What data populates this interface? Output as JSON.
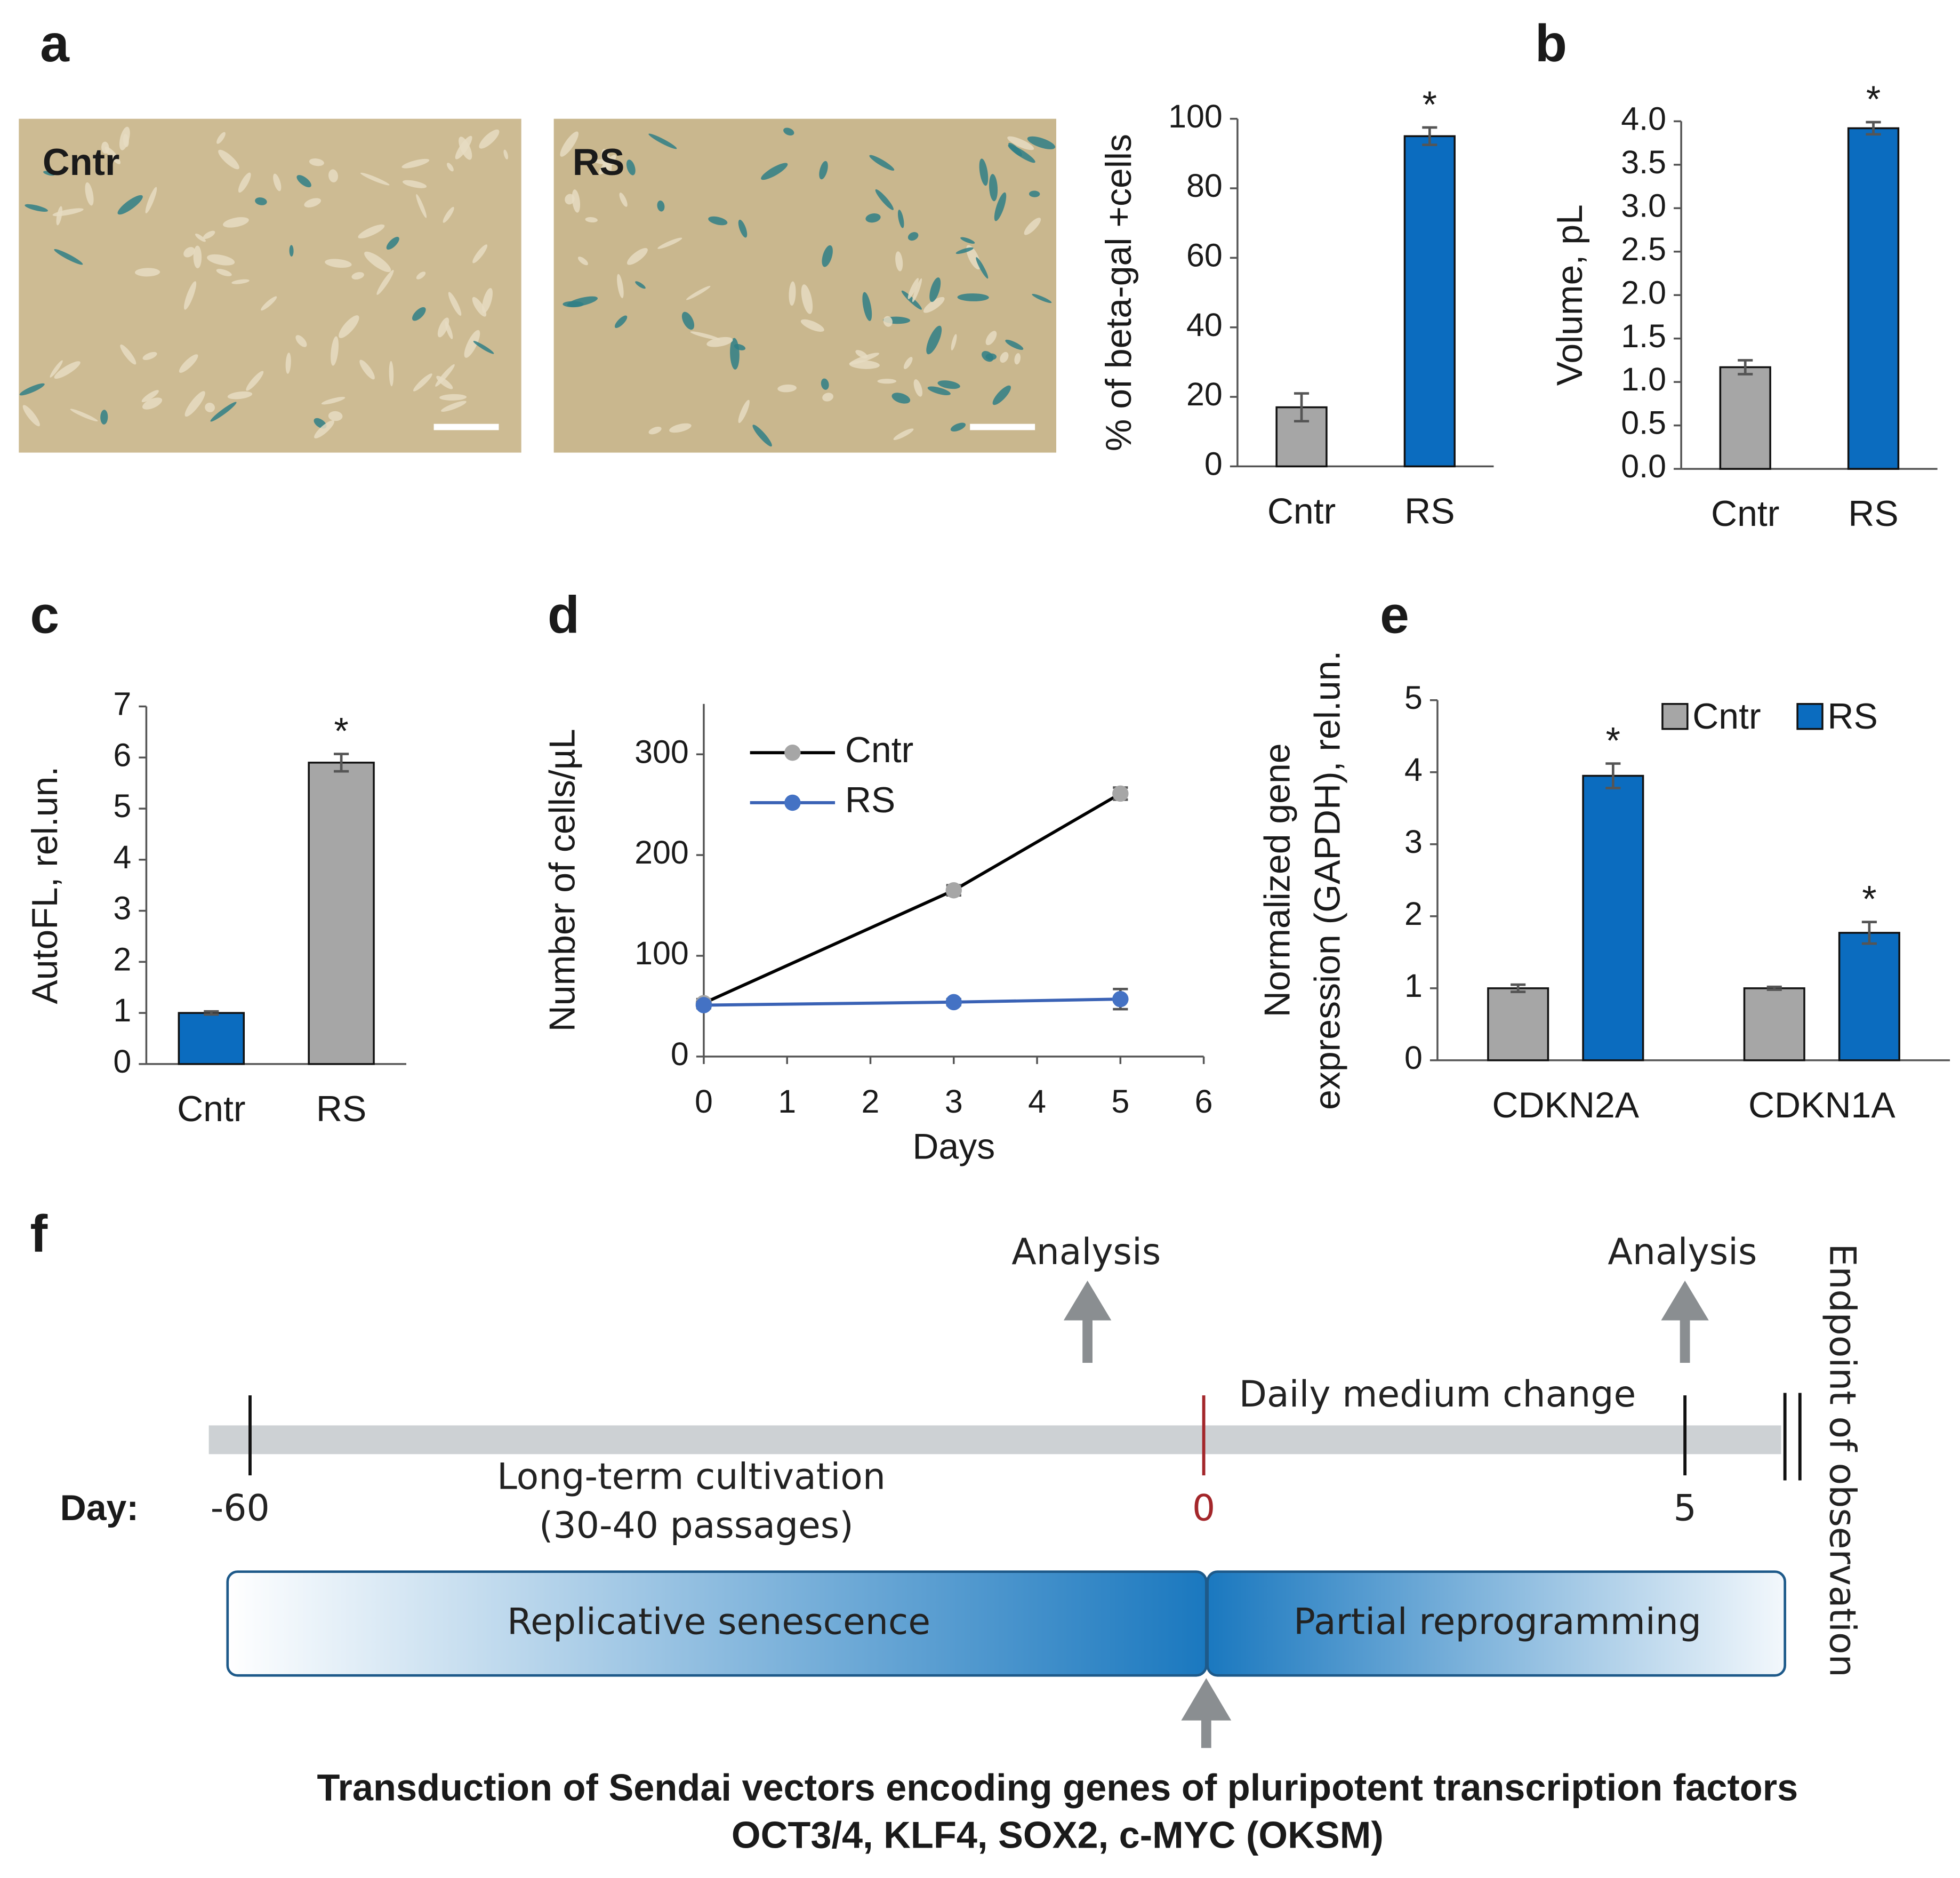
{
  "panel_labels": [
    "a",
    "b",
    "c",
    "d",
    "e",
    "f"
  ],
  "images": [
    {
      "label": "Cntr"
    },
    {
      "label": "RS"
    }
  ],
  "chart_data": [
    {
      "type": "bar",
      "categories": [
        "Cntr",
        "RS"
      ],
      "values": [
        17,
        95
      ],
      "errors": [
        4,
        2.5
      ],
      "colors": [
        "#a6a6a6",
        "#0b6cbf"
      ],
      "significance": [
        null,
        "*"
      ],
      "ylabel": "% of beta-gal +cells",
      "ylim": [
        0,
        100
      ],
      "yticks": [
        0,
        20,
        40,
        60,
        80,
        100
      ]
    },
    {
      "type": "bar",
      "categories": [
        "Cntr",
        "RS"
      ],
      "values": [
        1.17,
        3.92
      ],
      "errors": [
        0.08,
        0.07
      ],
      "colors": [
        "#a6a6a6",
        "#0b6cbf"
      ],
      "significance": [
        null,
        "*"
      ],
      "ylabel": "Volume, pL",
      "ylim": [
        0,
        4
      ],
      "yticks": [
        {
          "value": 0,
          "label": "0.0"
        },
        0.5,
        {
          "value": 1,
          "label": "1.0"
        },
        1.5,
        {
          "value": 2,
          "label": "2.0"
        },
        2.5,
        {
          "value": 3,
          "label": "3.0"
        },
        3.5,
        {
          "value": 4,
          "label": "4.0"
        }
      ]
    },
    {
      "type": "bar",
      "categories": [
        "Cntr",
        "RS"
      ],
      "values": [
        1,
        5.9
      ],
      "errors": [
        0.03,
        0.17
      ],
      "colors": [
        "#0b6cbf",
        "#a6a6a6"
      ],
      "significance": [
        null,
        "*"
      ],
      "ylabel": "AutoFL, rel.un.",
      "ylim": [
        0,
        7
      ],
      "yticks": [
        0,
        1,
        2,
        3,
        4,
        5,
        6,
        7
      ]
    },
    {
      "type": "line",
      "x": [
        0,
        3,
        5
      ],
      "series": [
        {
          "name": "Cntr",
          "color": "#000000",
          "marker_color": "#a6a6a6",
          "values": [
            53,
            165,
            261
          ],
          "errors": [
            4,
            5,
            6
          ]
        },
        {
          "name": "RS",
          "color": "#3a62b5",
          "marker_color": "#4472c4",
          "values": [
            51,
            54,
            57
          ],
          "errors": [
            3,
            3,
            10
          ]
        }
      ],
      "xlabel": "Days",
      "ylabel": "Number of cells/µL",
      "xlim": [
        0,
        6
      ],
      "xticks": [
        0,
        1,
        2,
        3,
        4,
        5,
        6
      ],
      "ylim": [
        0,
        350
      ],
      "yticks": [
        0,
        100,
        200,
        300
      ]
    },
    {
      "type": "bar",
      "categories": [
        "CDKN2A",
        "CDKN1A"
      ],
      "series": [
        {
          "name": "Cntr",
          "color": "#a6a6a6",
          "values": [
            1,
            1
          ],
          "errors": [
            0.05,
            0.02
          ]
        },
        {
          "name": "RS",
          "color": "#0b6cbf",
          "values": [
            3.95,
            1.77
          ],
          "errors": [
            0.17,
            0.15
          ],
          "significance": [
            "*",
            "*"
          ]
        }
      ],
      "ylabel": [
        "Normalized gene",
        "expression (GAPDH), rel.un."
      ],
      "ylim": [
        0,
        5
      ],
      "yticks": [
        0,
        1,
        2,
        3,
        4,
        5
      ],
      "legend": "top"
    }
  ],
  "timeline": {
    "analysis": [
      "Analysis",
      "Analysis"
    ],
    "medium": "Daily medium change",
    "day_label": "Day:",
    "days": [
      "-60",
      "0",
      "5"
    ],
    "cultivation": [
      "Long-term cultivation",
      "(30-40 passages)"
    ],
    "phases": [
      "Replicative senescence",
      "Partial reprogramming"
    ],
    "endpoint": "Endpoint of observation",
    "transduction": [
      "Transduction of Sendai vectors encoding genes of pluripotent transcription factors",
      "OCT3/4, KLF4, SOX2, c-MYC (OKSM)"
    ]
  }
}
